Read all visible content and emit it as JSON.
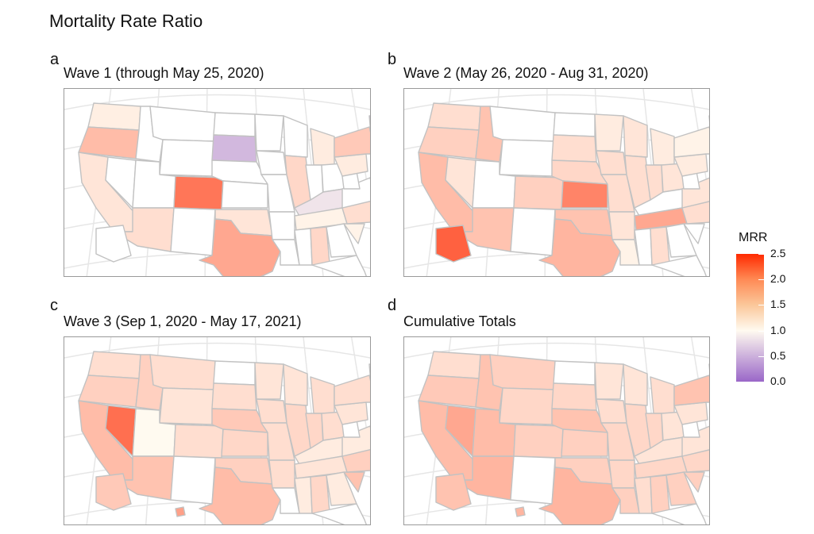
{
  "figure": {
    "title": "Mortality Rate Ratio"
  },
  "legend": {
    "title": "MRR",
    "min": 0,
    "max": 2.5,
    "ticks": [
      "2.5",
      "2.0",
      "1.5",
      "1.0",
      "0.5",
      "0.0"
    ],
    "tick_values": [
      2.5,
      2.0,
      1.5,
      1.0,
      0.5,
      0.0
    ],
    "color_low": "#9a67c8",
    "color_mid": "#fffaf0",
    "color_high": "#ff2a00"
  },
  "panels": [
    {
      "letter": "a",
      "title": "Wave 1 (through May 25, 2020)",
      "states": {
        "WA": 1.08,
        "OR": 1.45,
        "CA": 1.15,
        "CO": 1.95,
        "TX": 1.6,
        "AZ": 1.2,
        "OK": 1.15,
        "SD": 0.55,
        "MI": 1.1,
        "IL": 1.25,
        "KY": 0.85,
        "TN": 1.05,
        "AL": 1.25,
        "NC": 1.2,
        "SC": 1.05,
        "NY": 1.35,
        "VT": 0.4,
        "PA": 1.1
      }
    },
    {
      "letter": "b",
      "title": "Wave 2 (May 26, 2020 - Aug 31, 2020)",
      "states": {
        "WA": 1.2,
        "OR": 1.3,
        "CA": 1.45,
        "NV": 1.15,
        "ID": 1.4,
        "AZ": 1.4,
        "CO": 1.3,
        "KS": 1.85,
        "TX": 1.5,
        "OK": 1.4,
        "AK": 2.1,
        "TN": 1.6,
        "NE": 1.25,
        "SD": 1.2,
        "IA": 1.2,
        "MN": 1.1,
        "IL": 1.2,
        "WI": 1.15,
        "MI": 1.1,
        "IN": 1.2,
        "OH": 1.15,
        "PA": 1.1,
        "NY": 1.05,
        "NC": 1.2,
        "VA": 1.15,
        "AL": 1.2,
        "LA": 1.05,
        "AR": 1.15,
        "MO": 1.2,
        "NH": 0.85,
        "ME": 1.05
      }
    },
    {
      "letter": "c",
      "title": "Wave 3 (Sep 1, 2020 - May 17, 2021)",
      "states": {
        "WA": 1.2,
        "OR": 1.3,
        "CA": 1.45,
        "NV": 2.0,
        "ID": 1.3,
        "AZ": 1.4,
        "UT": 1.0,
        "CO": 1.2,
        "KS": 1.25,
        "NE": 1.35,
        "TX": 1.45,
        "OK": 1.3,
        "AK": 1.35,
        "HI": 1.65,
        "MT": 1.2,
        "WY": 1.15,
        "SD": 1.2,
        "IA": 1.2,
        "MN": 1.15,
        "WI": 1.15,
        "IL": 1.25,
        "MI": 1.2,
        "IN": 1.25,
        "OH": 1.2,
        "PA": 1.15,
        "NY": 1.2,
        "NC": 1.3,
        "SC": 1.4,
        "AL": 1.25,
        "MS": 1.1,
        "GA": 1.1,
        "TN": 1.15,
        "KY": 1.1,
        "AR": 1.2,
        "MO": 1.2,
        "VA": 1.1,
        "ME": 1.1,
        "NH": 1.1
      }
    },
    {
      "letter": "d",
      "title": "Cumulative Totals",
      "states": {
        "WA": 1.2,
        "OR": 1.35,
        "CA": 1.45,
        "NV": 1.6,
        "ID": 1.4,
        "AZ": 1.5,
        "UT": 1.45,
        "CO": 1.3,
        "KS": 1.3,
        "NE": 1.4,
        "TX": 1.5,
        "OK": 1.3,
        "AK": 1.4,
        "HI": 1.5,
        "MT": 1.3,
        "WY": 1.25,
        "SD": 1.25,
        "IA": 1.2,
        "MN": 1.15,
        "WI": 1.15,
        "IL": 1.25,
        "MI": 1.2,
        "IN": 1.25,
        "OH": 1.15,
        "PA": 1.15,
        "NY": 1.4,
        "NC": 1.25,
        "SC": 1.3,
        "AL": 1.3,
        "MS": 1.2,
        "GA": 1.3,
        "TN": 1.25,
        "KY": 1.15,
        "AR": 1.25,
        "MO": 1.25,
        "LA": 1.3,
        "VA": 1.15,
        "ME": 1.1,
        "NH": 1.1
      }
    }
  ]
}
